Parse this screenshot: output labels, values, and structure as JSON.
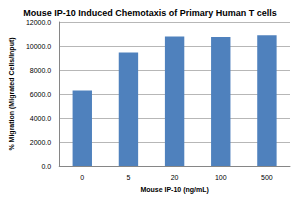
{
  "chart_data": {
    "type": "bar",
    "title": "Mouse IP-10 Induced Chemotaxis of Primary Human T cells",
    "x_label": "Mouse IP-10 (ng/mL)",
    "y_label": "% Migration (Migrated Cells/Input)",
    "categories": [
      "0",
      "5",
      "20",
      "100",
      "500"
    ],
    "values": [
      6300,
      9450,
      10800,
      10750,
      10900
    ],
    "color": "#4f81bd",
    "ylim": [
      0,
      12000
    ],
    "yticks": [
      {
        "value": 0,
        "label": "0.0"
      },
      {
        "value": 2000,
        "label": "2000.0"
      },
      {
        "value": 4000,
        "label": "4000.0"
      },
      {
        "value": 6000,
        "label": "6000.0"
      },
      {
        "value": 8000,
        "label": "8000.0"
      },
      {
        "value": 10000,
        "label": "10000.0"
      },
      {
        "value": 12000,
        "label": "12000.0"
      }
    ],
    "grid": true
  }
}
